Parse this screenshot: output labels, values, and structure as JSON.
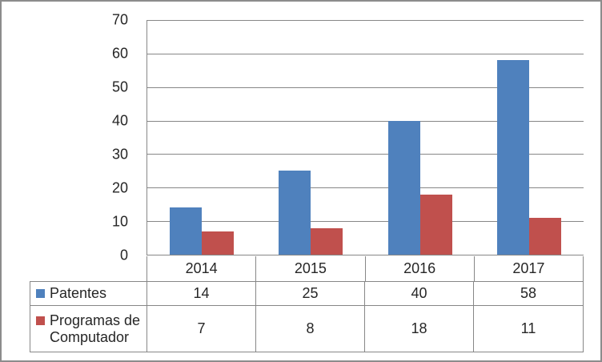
{
  "colors": {
    "series_blue": "#4F81BD",
    "series_red": "#C0504D",
    "grid": "#878787",
    "frame": "#8C8C8C",
    "text": "#262626",
    "background": "#FFFFFF"
  },
  "chart_data": {
    "type": "bar",
    "title": "",
    "xlabel": "",
    "ylabel": "",
    "categories": [
      "2014",
      "2015",
      "2016",
      "2017"
    ],
    "series": [
      {
        "name": "Patentes",
        "color": "#4F81BD",
        "values": [
          14,
          25,
          40,
          58
        ]
      },
      {
        "name": "Programas de Computador",
        "color": "#C0504D",
        "values": [
          7,
          8,
          18,
          11
        ]
      }
    ],
    "ylim": [
      0,
      70
    ],
    "ytick_step": 10,
    "ytick_labels": [
      "0",
      "10",
      "20",
      "30",
      "40",
      "50",
      "60",
      "70"
    ],
    "grid": true,
    "legend_position": "data-table-left",
    "data_table_shown": true
  }
}
